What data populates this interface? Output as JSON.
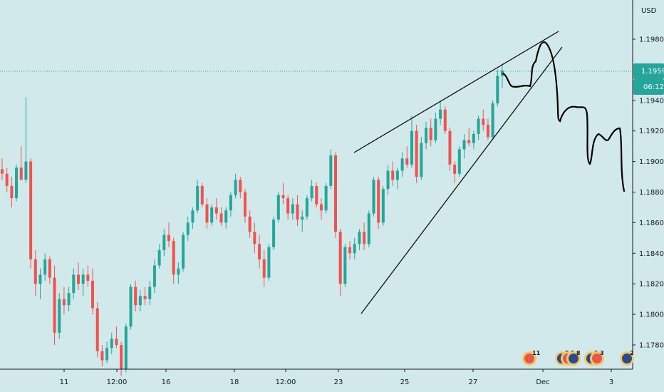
{
  "chart_data": {
    "type": "candlestick",
    "currency_label": "USD",
    "y_axis_ticks": [
      "1.17800",
      "1.18000",
      "1.18200",
      "1.18400",
      "1.18600",
      "1.18800",
      "1.19000",
      "1.19200",
      "1.19400",
      "1.19800"
    ],
    "ylim": [
      1.1768,
      1.1999
    ],
    "x_axis_ticks": [
      "11",
      "12:00",
      "16",
      "18",
      "12:00",
      "23",
      "25",
      "27",
      "Dec",
      "3"
    ],
    "last_price": "1.19595",
    "countdown": "06:12",
    "colors": {
      "background": "#d1e9ea",
      "bull": "#26a69a",
      "bear": "#ef5350",
      "price_tag": "#26a69a",
      "drawing": "#000000"
    },
    "event_flags": [
      "11",
      "5",
      "2",
      "8",
      "3",
      "3",
      "2"
    ],
    "series": [
      {
        "values": [
          [
            1.1895,
            1.1902,
            1.1888,
            1.1892
          ],
          [
            1.1892,
            1.1896,
            1.188,
            1.1884
          ],
          [
            1.1884,
            1.189,
            1.187,
            1.1876
          ],
          [
            1.1876,
            1.1898,
            1.1874,
            1.1896
          ],
          [
            1.1896,
            1.191,
            1.189,
            1.1888
          ],
          [
            1.1888,
            1.1942,
            1.1886,
            1.19
          ],
          [
            1.19,
            1.1902,
            1.183,
            1.1836
          ],
          [
            1.1836,
            1.1842,
            1.1812,
            1.182
          ],
          [
            1.182,
            1.183,
            1.181,
            1.1826
          ],
          [
            1.1826,
            1.184,
            1.1822,
            1.1836
          ],
          [
            1.1836,
            1.1838,
            1.182,
            1.1824
          ],
          [
            1.1824,
            1.1832,
            1.178,
            1.1788
          ],
          [
            1.1788,
            1.1814,
            1.1784,
            1.181
          ],
          [
            1.181,
            1.1818,
            1.18,
            1.1806
          ],
          [
            1.1806,
            1.1818,
            1.1802,
            1.1814
          ],
          [
            1.1814,
            1.183,
            1.181,
            1.1826
          ],
          [
            1.1826,
            1.1834,
            1.1816,
            1.182
          ],
          [
            1.182,
            1.183,
            1.1812,
            1.1826
          ],
          [
            1.1826,
            1.1832,
            1.1818,
            1.1822
          ],
          [
            1.1822,
            1.183,
            1.18,
            1.1804
          ],
          [
            1.1804,
            1.1808,
            1.1772,
            1.1776
          ],
          [
            1.1776,
            1.178,
            1.1766,
            1.177
          ],
          [
            1.177,
            1.1782,
            1.1768,
            1.1778
          ],
          [
            1.1778,
            1.1788,
            1.1774,
            1.1784
          ],
          [
            1.1784,
            1.1792,
            1.1778,
            1.178
          ],
          [
            1.178,
            1.1782,
            1.176,
            1.1764
          ],
          [
            1.1764,
            1.1794,
            1.1762,
            1.1792
          ],
          [
            1.1792,
            1.182,
            1.179,
            1.1818
          ],
          [
            1.1818,
            1.1822,
            1.1802,
            1.1806
          ],
          [
            1.1806,
            1.1816,
            1.1802,
            1.1812
          ],
          [
            1.1812,
            1.1818,
            1.1806,
            1.181
          ],
          [
            1.181,
            1.1822,
            1.1806,
            1.1818
          ],
          [
            1.1818,
            1.1836,
            1.1814,
            1.1832
          ],
          [
            1.1832,
            1.1846,
            1.183,
            1.1842
          ],
          [
            1.1842,
            1.1856,
            1.1838,
            1.1852
          ],
          [
            1.1852,
            1.186,
            1.1844,
            1.1848
          ],
          [
            1.1848,
            1.185,
            1.182,
            1.1826
          ],
          [
            1.1826,
            1.1834,
            1.182,
            1.183
          ],
          [
            1.183,
            1.1854,
            1.1828,
            1.1852
          ],
          [
            1.1852,
            1.1864,
            1.1848,
            1.186
          ],
          [
            1.186,
            1.187,
            1.1856,
            1.1868
          ],
          [
            1.1868,
            1.1888,
            1.1866,
            1.1884
          ],
          [
            1.1884,
            1.1886,
            1.187,
            1.1872
          ],
          [
            1.1872,
            1.1876,
            1.1856,
            1.186
          ],
          [
            1.186,
            1.1872,
            1.1858,
            1.187
          ],
          [
            1.187,
            1.1876,
            1.1862,
            1.1866
          ],
          [
            1.1866,
            1.187,
            1.1858,
            1.186
          ],
          [
            1.186,
            1.187,
            1.1856,
            1.1868
          ],
          [
            1.1868,
            1.188,
            1.1864,
            1.1878
          ],
          [
            1.1878,
            1.1892,
            1.1876,
            1.1888
          ],
          [
            1.1888,
            1.189,
            1.1876,
            1.188
          ],
          [
            1.188,
            1.1882,
            1.186,
            1.1864
          ],
          [
            1.1864,
            1.1868,
            1.185,
            1.1854
          ],
          [
            1.1854,
            1.186,
            1.184,
            1.1846
          ],
          [
            1.1846,
            1.1852,
            1.183,
            1.1836
          ],
          [
            1.1836,
            1.1842,
            1.1818,
            1.1824
          ],
          [
            1.1824,
            1.1846,
            1.1822,
            1.1844
          ],
          [
            1.1844,
            1.1864,
            1.1842,
            1.1862
          ],
          [
            1.1862,
            1.188,
            1.186,
            1.1878
          ],
          [
            1.1878,
            1.1886,
            1.1872,
            1.1876
          ],
          [
            1.1876,
            1.1878,
            1.1862,
            1.1866
          ],
          [
            1.1866,
            1.1876,
            1.1862,
            1.1872
          ],
          [
            1.1872,
            1.1878,
            1.1858,
            1.1862
          ],
          [
            1.1862,
            1.1868,
            1.1854,
            1.1864
          ],
          [
            1.1864,
            1.1878,
            1.1862,
            1.1876
          ],
          [
            1.1876,
            1.1888,
            1.1874,
            1.1884
          ],
          [
            1.1884,
            1.1886,
            1.187,
            1.1872
          ],
          [
            1.1872,
            1.1876,
            1.1862,
            1.1868
          ],
          [
            1.1868,
            1.1886,
            1.1866,
            1.1884
          ],
          [
            1.1884,
            1.1908,
            1.1882,
            1.1904
          ],
          [
            1.1904,
            1.1906,
            1.185,
            1.1854
          ],
          [
            1.1854,
            1.1856,
            1.1812,
            1.182
          ],
          [
            1.182,
            1.1846,
            1.1818,
            1.1844
          ],
          [
            1.1844,
            1.1848,
            1.1836,
            1.184
          ],
          [
            1.184,
            1.185,
            1.1836,
            1.1846
          ],
          [
            1.1846,
            1.1856,
            1.1842,
            1.1854
          ],
          [
            1.1854,
            1.186,
            1.1842,
            1.1846
          ],
          [
            1.1846,
            1.1868,
            1.1844,
            1.1866
          ],
          [
            1.1866,
            1.189,
            1.1864,
            1.1888
          ],
          [
            1.1888,
            1.189,
            1.1856,
            1.186
          ],
          [
            1.186,
            1.1884,
            1.1858,
            1.1882
          ],
          [
            1.1882,
            1.1898,
            1.1878,
            1.1894
          ],
          [
            1.1894,
            1.19,
            1.1884,
            1.1888
          ],
          [
            1.1888,
            1.1896,
            1.1882,
            1.1894
          ],
          [
            1.1894,
            1.1906,
            1.189,
            1.1902
          ],
          [
            1.1902,
            1.191,
            1.1896,
            1.1898
          ],
          [
            1.1898,
            1.193,
            1.1896,
            1.192
          ],
          [
            1.192,
            1.1924,
            1.1886,
            1.189
          ],
          [
            1.189,
            1.1916,
            1.1888,
            1.1912
          ],
          [
            1.1912,
            1.1926,
            1.1908,
            1.1922
          ],
          [
            1.1922,
            1.1928,
            1.191,
            1.1914
          ],
          [
            1.1914,
            1.1932,
            1.1912,
            1.1928
          ],
          [
            1.1928,
            1.194,
            1.1924,
            1.1934
          ],
          [
            1.1934,
            1.1936,
            1.1918,
            1.192
          ],
          [
            1.192,
            1.1922,
            1.1894,
            1.1898
          ],
          [
            1.1898,
            1.19,
            1.1886,
            1.1892
          ],
          [
            1.1892,
            1.191,
            1.189,
            1.1908
          ],
          [
            1.1908,
            1.1918,
            1.1902,
            1.1914
          ],
          [
            1.1914,
            1.1922,
            1.191,
            1.1912
          ],
          [
            1.1912,
            1.192,
            1.1908,
            1.1918
          ],
          [
            1.1918,
            1.193,
            1.1914,
            1.1928
          ],
          [
            1.1928,
            1.1934,
            1.192,
            1.1924
          ],
          [
            1.1924,
            1.1928,
            1.1914,
            1.1916
          ],
          [
            1.1916,
            1.194,
            1.1914,
            1.1938
          ],
          [
            1.1938,
            1.196,
            1.1936,
            1.1956
          ],
          [
            1.1956,
            1.1964,
            1.1948,
            1.19595
          ]
        ]
      }
    ]
  }
}
